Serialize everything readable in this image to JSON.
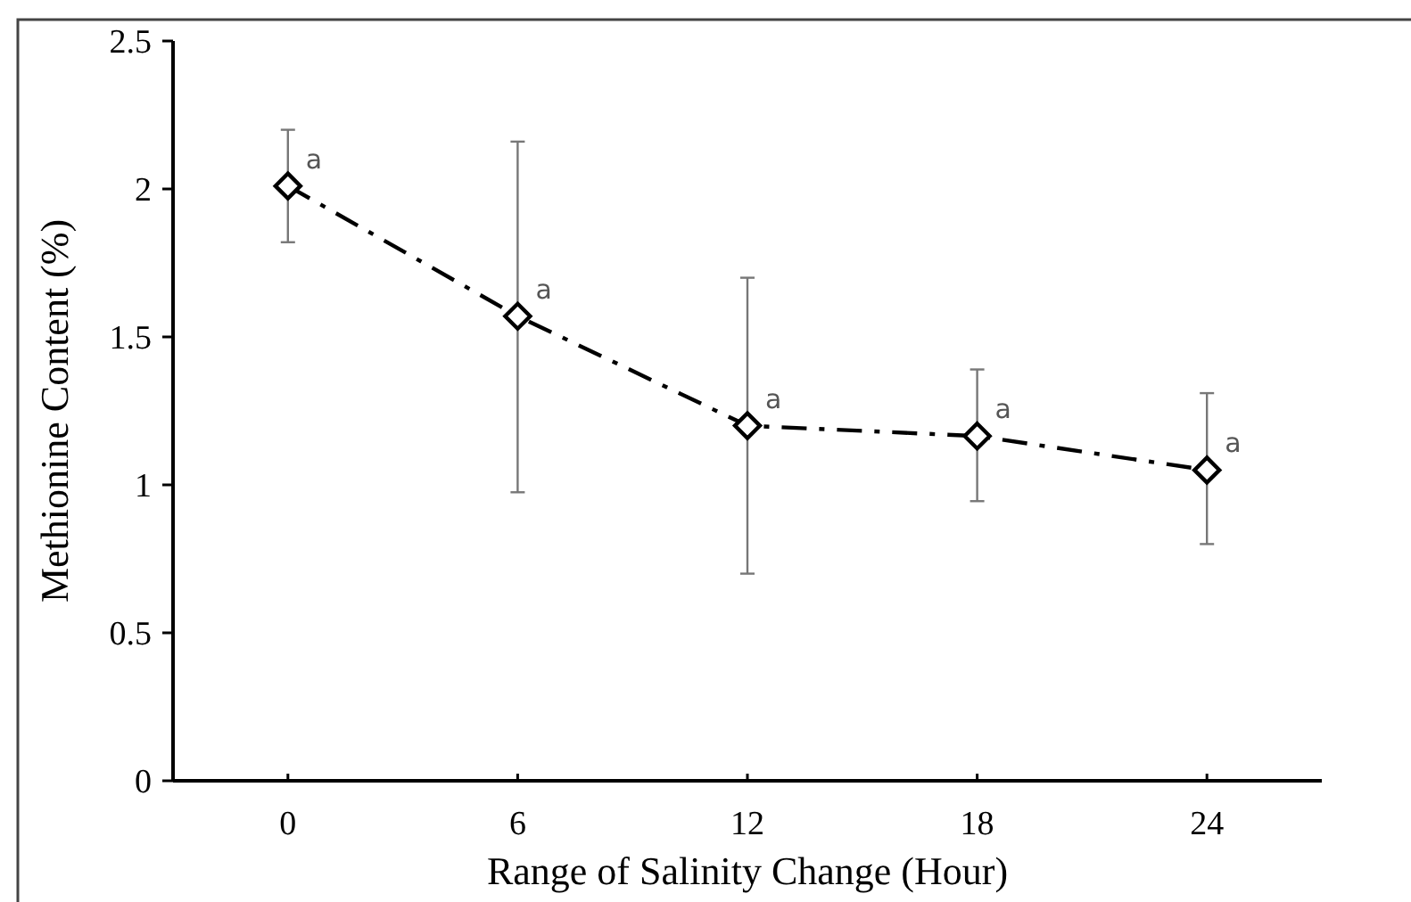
{
  "chart_data": {
    "type": "line",
    "xlabel": "Range of Salinity Change (Hour)",
    "ylabel": "Methionine Content (%)",
    "categories": [
      "0",
      "6",
      "12",
      "18",
      "24"
    ],
    "series": [
      {
        "color": "#000000",
        "values": [
          2.01,
          1.57,
          1.2,
          1.165,
          1.05
        ],
        "errors": [
          [
            1.82,
            2.2
          ],
          [
            0.975,
            2.16
          ],
          [
            0.7,
            1.7
          ],
          [
            0.945,
            1.39
          ],
          [
            0.8,
            1.31
          ]
        ]
      }
    ],
    "ylim": [
      0,
      2.5
    ],
    "yticks": [
      0,
      0.5,
      1,
      1.5,
      2,
      2.5
    ],
    "grid": false,
    "marker": "diamond",
    "line_style": "dashed",
    "annotations": [
      {
        "text": "a",
        "x": "0",
        "y": 2.01
      },
      {
        "text": "a",
        "x": "6",
        "y": 1.57
      },
      {
        "text": "a",
        "x": "12",
        "y": 1.2
      },
      {
        "text": "a",
        "x": "18",
        "y": 1.165
      },
      {
        "text": "a",
        "x": "24",
        "y": 1.05
      }
    ]
  }
}
